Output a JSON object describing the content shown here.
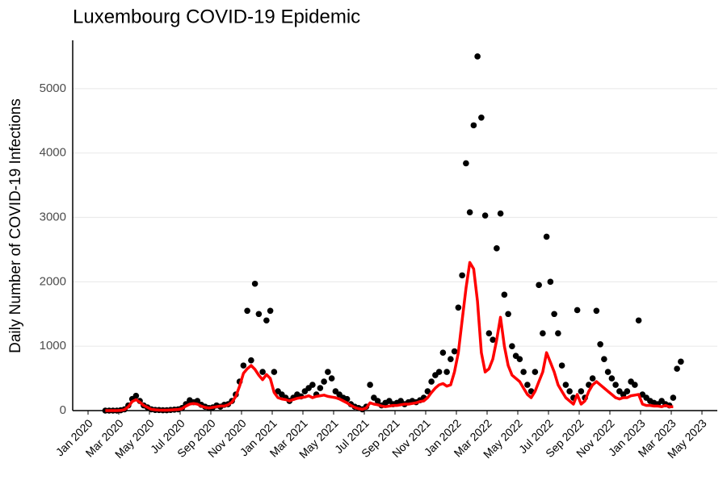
{
  "chart_data": {
    "type": "scatter",
    "title": "Luxembourg COVID-19 Epidemic",
    "ylabel": "Daily Number of COVID-19 Infections",
    "xlim": [
      "2019-12",
      "2023-06"
    ],
    "ylim": [
      0,
      5750
    ],
    "yticks": [
      0,
      1000,
      2000,
      3000,
      4000,
      5000
    ],
    "xticks": [
      {
        "value": "2020-01",
        "label": "Jan 2020"
      },
      {
        "value": "2020-03",
        "label": "Mar 2020"
      },
      {
        "value": "2020-05",
        "label": "May 2020"
      },
      {
        "value": "2020-07",
        "label": "Jul 2020"
      },
      {
        "value": "2020-09",
        "label": "Sep 2020"
      },
      {
        "value": "2020-11",
        "label": "Nov 2020"
      },
      {
        "value": "2021-01",
        "label": "Jan 2021"
      },
      {
        "value": "2021-03",
        "label": "Mar 2021"
      },
      {
        "value": "2021-05",
        "label": "May 2021"
      },
      {
        "value": "2021-07",
        "label": "Jul 2021"
      },
      {
        "value": "2021-09",
        "label": "Sep 2021"
      },
      {
        "value": "2021-11",
        "label": "Nov 2021"
      },
      {
        "value": "2022-01",
        "label": "Jan 2022"
      },
      {
        "value": "2022-03",
        "label": "Mar 2022"
      },
      {
        "value": "2022-05",
        "label": "May 2022"
      },
      {
        "value": "2022-07",
        "label": "Jul 2022"
      },
      {
        "value": "2022-09",
        "label": "Sep 2022"
      },
      {
        "value": "2022-11",
        "label": "Nov 2022"
      },
      {
        "value": "2023-01",
        "label": "Jan 2023"
      },
      {
        "value": "2023-03",
        "label": "Mar 2023"
      },
      {
        "value": "2023-05",
        "label": "May 2023"
      }
    ],
    "grid": true,
    "x": [
      "2020-02",
      "2020-02",
      "2020-02",
      "2020-02",
      "2020-03",
      "2020-03",
      "2020-03",
      "2020-03",
      "2020-04",
      "2020-04",
      "2020-04",
      "2020-04",
      "2020-05",
      "2020-05",
      "2020-05",
      "2020-05",
      "2020-06",
      "2020-06",
      "2020-06",
      "2020-06",
      "2020-07",
      "2020-07",
      "2020-07",
      "2020-07",
      "2020-08",
      "2020-08",
      "2020-08",
      "2020-08",
      "2020-09",
      "2020-09",
      "2020-09",
      "2020-09",
      "2020-10",
      "2020-10",
      "2020-10",
      "2020-10",
      "2020-11",
      "2020-11",
      "2020-11",
      "2020-11",
      "2020-12",
      "2020-12",
      "2020-12",
      "2020-12",
      "2021-01",
      "2021-01",
      "2021-01",
      "2021-01",
      "2021-02",
      "2021-02",
      "2021-02",
      "2021-02",
      "2021-03",
      "2021-03",
      "2021-03",
      "2021-03",
      "2021-04",
      "2021-04",
      "2021-04",
      "2021-04",
      "2021-05",
      "2021-05",
      "2021-05",
      "2021-05",
      "2021-06",
      "2021-06",
      "2021-06",
      "2021-06",
      "2021-07",
      "2021-07",
      "2021-07",
      "2021-07",
      "2021-08",
      "2021-08",
      "2021-08",
      "2021-08",
      "2021-09",
      "2021-09",
      "2021-09",
      "2021-09",
      "2021-10",
      "2021-10",
      "2021-10",
      "2021-10",
      "2021-11",
      "2021-11",
      "2021-11",
      "2021-11",
      "2021-12",
      "2021-12",
      "2021-12",
      "2021-12",
      "2022-01",
      "2022-01",
      "2022-01",
      "2022-01",
      "2022-02",
      "2022-02",
      "2022-02",
      "2022-02",
      "2022-03",
      "2022-03",
      "2022-03",
      "2022-03",
      "2022-04",
      "2022-04",
      "2022-04",
      "2022-04",
      "2022-05",
      "2022-05",
      "2022-05",
      "2022-05",
      "2022-06",
      "2022-06",
      "2022-06",
      "2022-06",
      "2022-07",
      "2022-07",
      "2022-07",
      "2022-07",
      "2022-08",
      "2022-08",
      "2022-08",
      "2022-08",
      "2022-09",
      "2022-09",
      "2022-09",
      "2022-09",
      "2022-10",
      "2022-10",
      "2022-10",
      "2022-10",
      "2022-11",
      "2022-11",
      "2022-11",
      "2022-11",
      "2022-12",
      "2022-12",
      "2022-12",
      "2022-12",
      "2023-01",
      "2023-01",
      "2023-01",
      "2023-01",
      "2023-02",
      "2023-02",
      "2023-02",
      "2023-02",
      "2023-03",
      "2023-03",
      "2023-03",
      "2023-03"
    ],
    "series": [
      {
        "type": "scatter",
        "color": "#000000",
        "values": [
          0,
          0,
          0,
          0,
          5,
          20,
          80,
          180,
          230,
          150,
          80,
          50,
          20,
          10,
          8,
          5,
          5,
          10,
          15,
          20,
          40,
          100,
          160,
          130,
          150,
          90,
          60,
          40,
          50,
          80,
          60,
          90,
          100,
          150,
          250,
          450,
          700,
          1550,
          780,
          1970,
          1500,
          600,
          1400,
          1550,
          600,
          300,
          250,
          200,
          150,
          200,
          250,
          220,
          300,
          350,
          400,
          250,
          350,
          450,
          600,
          500,
          300,
          250,
          200,
          180,
          100,
          60,
          40,
          20,
          60,
          400,
          200,
          150,
          80,
          120,
          150,
          100,
          120,
          150,
          100,
          130,
          150,
          130,
          160,
          200,
          300,
          450,
          550,
          600,
          900,
          600,
          800,
          920,
          1600,
          2100,
          3840,
          3080,
          4430,
          5500,
          4550,
          3030,
          1200,
          1100,
          2520,
          3060,
          1800,
          1500,
          1000,
          850,
          800,
          600,
          400,
          300,
          600,
          1950,
          1200,
          2700,
          2000,
          1500,
          1200,
          700,
          400,
          300,
          200,
          1560,
          300,
          200,
          400,
          500,
          1550,
          1030,
          800,
          600,
          500,
          400,
          300,
          250,
          300,
          450,
          400,
          1400,
          250,
          200,
          150,
          120,
          100,
          150,
          100,
          80,
          200,
          650,
          760,
          null
        ]
      },
      {
        "type": "line",
        "color": "#ff0000",
        "values": [
          0,
          0,
          0,
          0,
          2,
          15,
          60,
          140,
          170,
          130,
          80,
          50,
          20,
          12,
          8,
          6,
          6,
          10,
          14,
          18,
          30,
          70,
          100,
          110,
          100,
          70,
          50,
          40,
          50,
          60,
          70,
          70,
          90,
          130,
          220,
          380,
          580,
          650,
          700,
          640,
          550,
          480,
          560,
          500,
          280,
          200,
          180,
          170,
          150,
          170,
          190,
          200,
          210,
          230,
          200,
          220,
          230,
          240,
          220,
          210,
          200,
          180,
          150,
          120,
          80,
          50,
          30,
          20,
          40,
          120,
          100,
          90,
          70,
          60,
          70,
          80,
          80,
          90,
          100,
          100,
          110,
          120,
          140,
          150,
          200,
          280,
          350,
          400,
          420,
          380,
          400,
          600,
          900,
          1400,
          1900,
          2300,
          2200,
          1700,
          900,
          600,
          650,
          800,
          1100,
          1450,
          1000,
          700,
          550,
          500,
          450,
          350,
          250,
          200,
          300,
          450,
          600,
          900,
          750,
          600,
          400,
          300,
          200,
          150,
          100,
          250,
          100,
          150,
          300,
          400,
          450,
          400,
          350,
          300,
          250,
          200,
          180,
          200,
          200,
          230,
          240,
          250,
          100,
          80,
          80,
          70,
          70,
          60,
          80,
          60,
          60,
          null,
          null,
          null
        ]
      }
    ]
  }
}
